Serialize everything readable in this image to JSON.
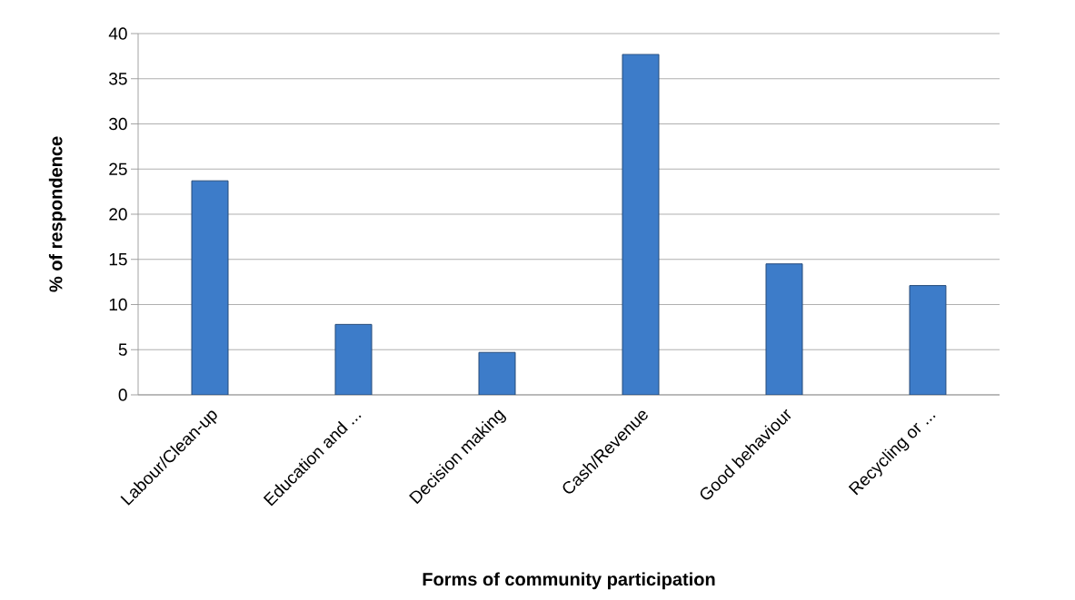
{
  "chart_data": {
    "type": "bar",
    "xlabel": "Forms of community participation",
    "ylabel": "% of respondence",
    "categories": [
      "Labour/Clean-up",
      "Education and ...",
      "Decision making",
      "Cash/Revenue",
      "Good behaviour",
      "Recycling or ..."
    ],
    "values": [
      23.7,
      7.8,
      4.7,
      37.7,
      14.5,
      12.1
    ],
    "color": "#3d7cc9",
    "ylim": [
      0,
      40
    ],
    "yticks": [
      0,
      5,
      10,
      15,
      20,
      25,
      30,
      35,
      40
    ],
    "grid": "y"
  }
}
